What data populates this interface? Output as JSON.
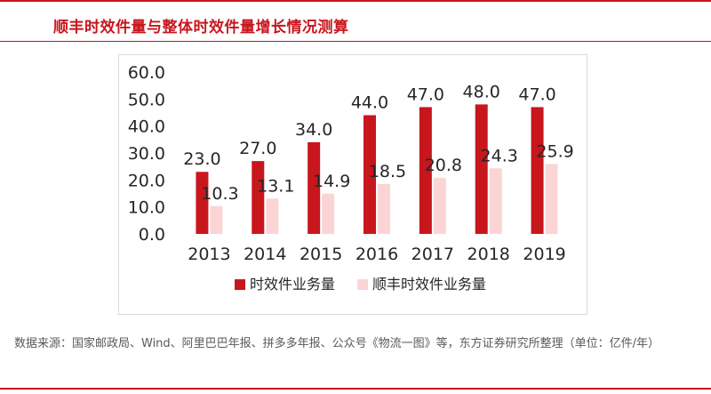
{
  "title": "顺丰时效件量与整体时效件量增长情况测算",
  "source": "数据来源：国家邮政局、Wind、阿里巴巴年报、拼多多年报、公众号《物流一图》等，东方证券研究所整理（单位：亿件/年）",
  "colors": {
    "accent": "#c8161d",
    "series_primary": "#c8161d",
    "series_secondary": "#fbd5d5"
  },
  "chart_data": {
    "type": "bar",
    "categories": [
      "2013",
      "2014",
      "2015",
      "2016",
      "2017",
      "2018",
      "2019"
    ],
    "series": [
      {
        "name": "时效件业务量",
        "values": [
          23.0,
          27.0,
          34.0,
          44.0,
          47.0,
          48.0,
          47.0
        ],
        "color": "#c8161d"
      },
      {
        "name": "顺丰时效件业务量",
        "values": [
          10.3,
          13.1,
          14.9,
          18.5,
          20.8,
          24.3,
          25.9
        ],
        "color": "#fbd5d5"
      }
    ],
    "y_ticks": [
      "0.0",
      "10.0",
      "20.0",
      "30.0",
      "40.0",
      "50.0",
      "60.0"
    ],
    "ylim": [
      0,
      60
    ],
    "grid": false,
    "legend": "bottom"
  }
}
